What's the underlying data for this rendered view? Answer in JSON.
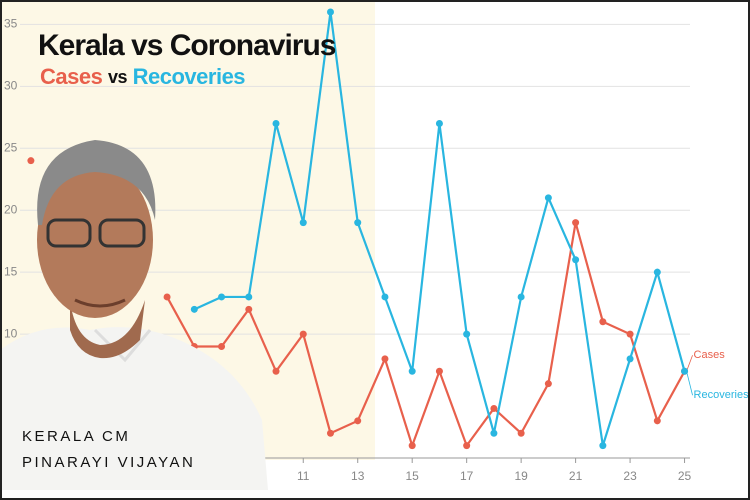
{
  "chart_data": {
    "type": "line",
    "title": "Kerala vs Coronavirus",
    "subtitle": [
      "Cases",
      "vs",
      "Recoveries"
    ],
    "caption": [
      "KERALA CM",
      "PINARAYI VIJAYAN"
    ],
    "x": [
      1,
      2,
      3,
      4,
      5,
      6,
      7,
      8,
      9,
      10,
      11,
      12,
      13,
      14,
      15,
      16,
      17,
      18,
      19,
      20,
      21,
      22,
      23,
      24,
      25
    ],
    "series": [
      {
        "name": "Cases",
        "color": "#e8604c",
        "values": [
          24,
          null,
          null,
          null,
          null,
          13,
          9,
          9,
          12,
          7,
          10,
          2,
          3,
          8,
          1,
          7,
          1,
          4,
          2,
          6,
          19,
          11,
          10,
          3,
          7
        ]
      },
      {
        "name": "Recoveries",
        "color": "#29b6e0",
        "values": [
          null,
          null,
          null,
          null,
          null,
          null,
          12,
          13,
          13,
          27,
          19,
          36,
          19,
          13,
          7,
          27,
          10,
          2,
          13,
          21,
          16,
          1,
          8,
          15,
          7
        ]
      }
    ],
    "xlim": [
      0.6,
      25.2
    ],
    "xticks": [
      11,
      13,
      15,
      17,
      19,
      21,
      23,
      25
    ],
    "ylim": [
      0,
      36
    ],
    "yticks": [
      10,
      15,
      20,
      25,
      30,
      35
    ],
    "grid": true
  }
}
